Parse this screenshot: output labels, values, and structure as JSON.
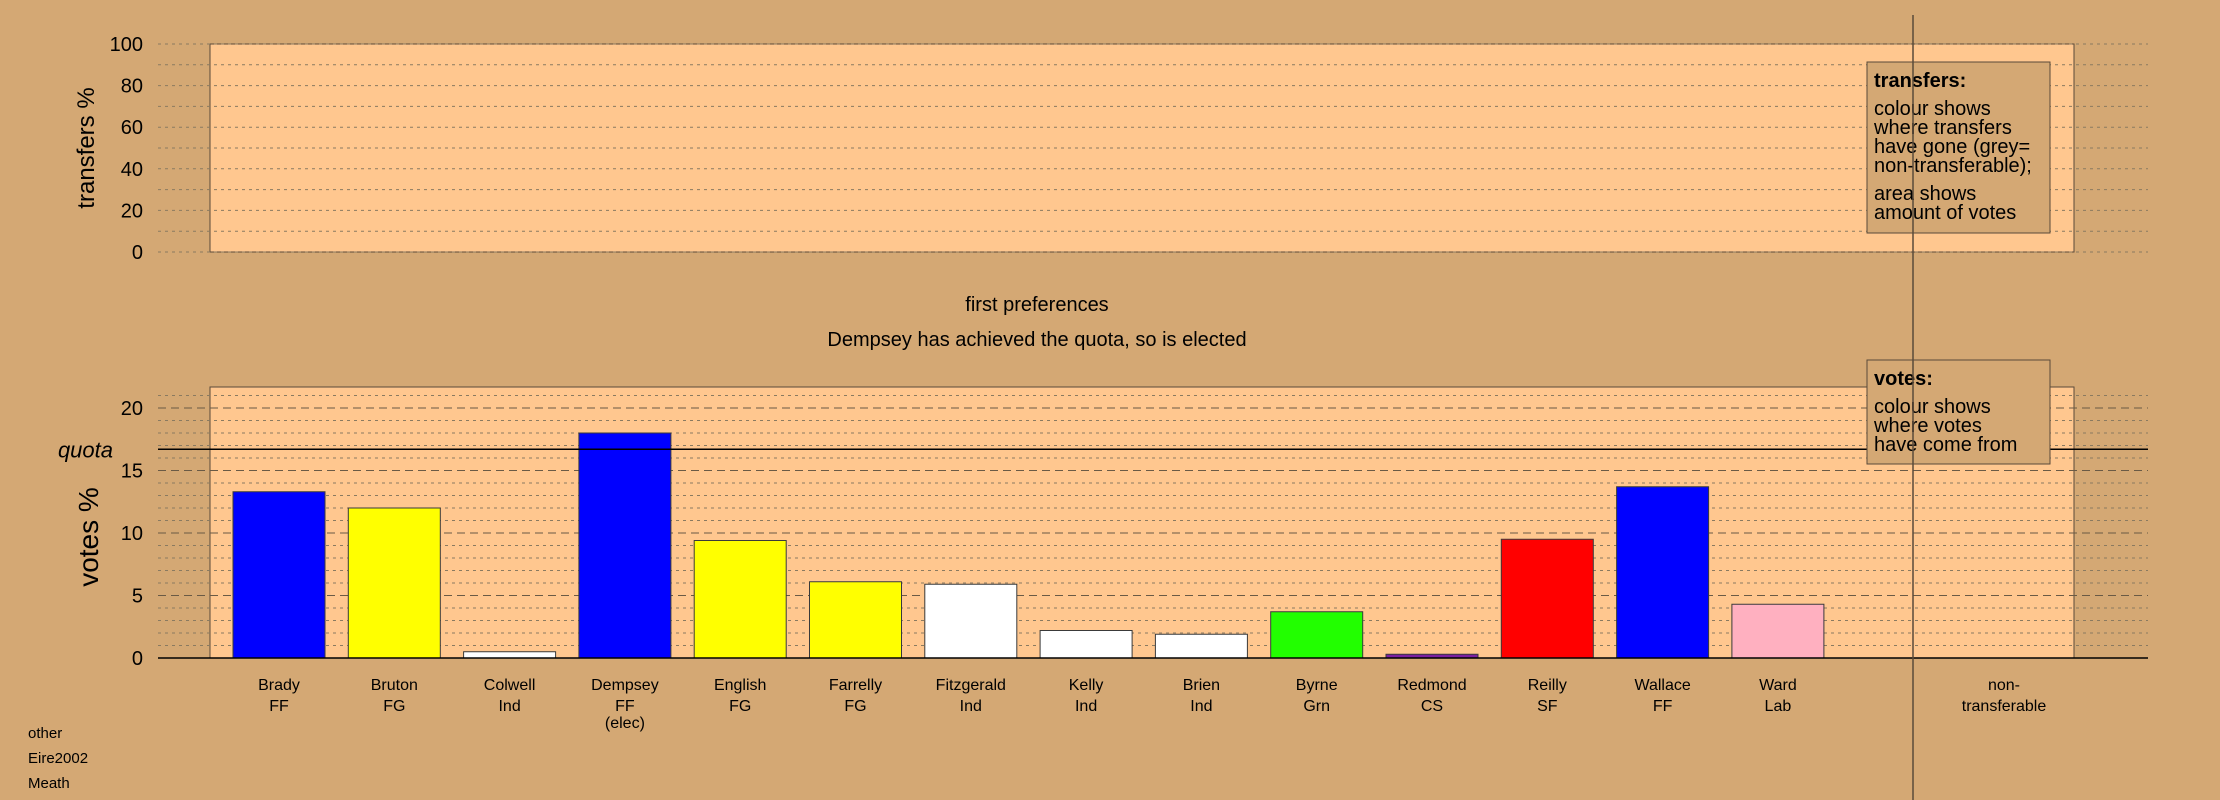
{
  "chart_data": [
    {
      "type": "bar",
      "name": "transfers",
      "ylabel": "transfers %",
      "ylim": [
        0,
        100
      ],
      "yticks": [
        0,
        20,
        40,
        60,
        80,
        100
      ],
      "series": [],
      "legend": {
        "title": "transfers:",
        "lines": [
          "colour shows",
          "where transfers",
          "have gone (grey=",
          "non-transferable);",
          "area shows",
          "amount of votes"
        ]
      }
    },
    {
      "type": "bar",
      "name": "votes",
      "title": "first preferences",
      "subtitle": "Dempsey has achieved the quota, so is elected",
      "ylabel": "votes %",
      "ylim": [
        0,
        22
      ],
      "yticks": [
        0,
        5,
        10,
        15,
        20
      ],
      "quota_label": "quota",
      "quota": 16.7,
      "categories": [
        {
          "name": "Brady",
          "party": "FF",
          "extra": "",
          "value": 13.3,
          "color": "#0000ff"
        },
        {
          "name": "Bruton",
          "party": "FG",
          "extra": "",
          "value": 12.0,
          "color": "#ffff00"
        },
        {
          "name": "Colwell",
          "party": "Ind",
          "extra": "",
          "value": 0.5,
          "color": "#ffffff"
        },
        {
          "name": "Dempsey",
          "party": "FF",
          "extra": "(elec)",
          "value": 18.0,
          "color": "#0000ff"
        },
        {
          "name": "English",
          "party": "FG",
          "extra": "",
          "value": 9.4,
          "color": "#ffff00"
        },
        {
          "name": "Farrelly",
          "party": "FG",
          "extra": "",
          "value": 6.1,
          "color": "#ffff00"
        },
        {
          "name": "Fitzgerald",
          "party": "Ind",
          "extra": "",
          "value": 5.9,
          "color": "#ffffff"
        },
        {
          "name": "Kelly",
          "party": "Ind",
          "extra": "",
          "value": 2.2,
          "color": "#ffffff"
        },
        {
          "name": "Brien",
          "party": "Ind",
          "extra": "",
          "value": 1.9,
          "color": "#ffffff"
        },
        {
          "name": "Byrne",
          "party": "Grn",
          "extra": "",
          "value": 3.7,
          "color": "#22ff00"
        },
        {
          "name": "Redmond",
          "party": "CS",
          "extra": "",
          "value": 0.3,
          "color": "#7b1fa2"
        },
        {
          "name": "Reilly",
          "party": "SF",
          "extra": "",
          "value": 9.5,
          "color": "#ff0000"
        },
        {
          "name": "Wallace",
          "party": "FF",
          "extra": "",
          "value": 13.7,
          "color": "#0000ff"
        },
        {
          "name": "Ward",
          "party": "Lab",
          "extra": "",
          "value": 4.3,
          "color": "#ffb0c0"
        }
      ],
      "nontransferable_label": [
        "non-",
        "transferable"
      ],
      "legend": {
        "title": "votes:",
        "lines": [
          "colour shows",
          "where votes",
          "have come from"
        ]
      }
    }
  ],
  "footer": {
    "line1": "other",
    "line2": "Eire2002",
    "line3": "Meath"
  },
  "colors": {
    "background": "#d4a874",
    "plot_panel": "#ffc78f",
    "legend_box": "#d4a874"
  }
}
